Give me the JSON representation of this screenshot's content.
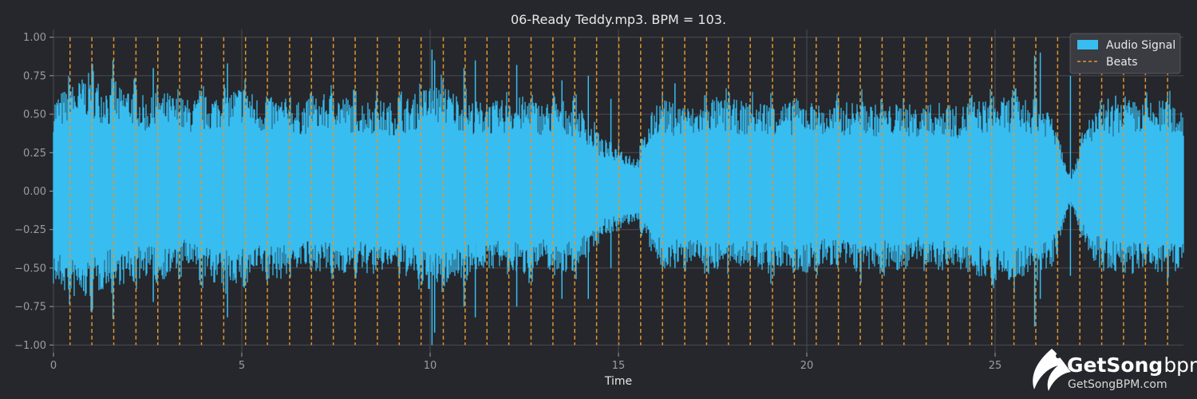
{
  "chart_data": {
    "type": "line",
    "title": "06-Ready Teddy.mp3. BPM = 103.",
    "xlabel": "Time",
    "ylabel": "",
    "xlim": [
      0,
      30
    ],
    "ylim": [
      -1.05,
      1.05
    ],
    "x_ticks": [
      0,
      5,
      10,
      15,
      20,
      25
    ],
    "x_tick_labels": [
      "0",
      "5",
      "10",
      "15",
      "20",
      "25"
    ],
    "y_ticks": [
      1.0,
      0.75,
      0.5,
      0.25,
      0.0,
      -0.25,
      -0.5,
      -0.75,
      -1.0
    ],
    "y_tick_labels": [
      "1.00",
      "0.75",
      "0.50",
      "0.25",
      "0.00",
      "−0.25",
      "−0.50",
      "−0.75",
      "−1.00"
    ],
    "grid": true,
    "legend": {
      "placement": "top-right",
      "entries": [
        "Audio Signal",
        "Beats"
      ]
    },
    "series": [
      {
        "name": "Audio Signal",
        "color": "#38bdf0",
        "duration": 30.0,
        "envelope_x": [
          0,
          0.5,
          1,
          1.5,
          2,
          2.5,
          3,
          3.5,
          4,
          4.5,
          5,
          5.5,
          6,
          6.5,
          7,
          7.5,
          8,
          8.5,
          9,
          9.5,
          10,
          10.5,
          11,
          11.5,
          12,
          12.5,
          13,
          13.5,
          14,
          14.5,
          15,
          15.5,
          16,
          16.5,
          17,
          17.5,
          18,
          18.5,
          19,
          19.5,
          20,
          20.5,
          21,
          21.5,
          22,
          22.5,
          23,
          23.5,
          24,
          24.5,
          25,
          25.5,
          26,
          26.5,
          27,
          27.5,
          28,
          28.5,
          29,
          29.5,
          30
        ],
        "envelope_peak": [
          0.62,
          0.7,
          0.78,
          0.65,
          0.7,
          0.6,
          0.65,
          0.6,
          0.62,
          0.65,
          0.7,
          0.6,
          0.62,
          0.58,
          0.62,
          0.65,
          0.6,
          0.6,
          0.58,
          0.62,
          0.7,
          0.68,
          0.6,
          0.58,
          0.6,
          0.62,
          0.58,
          0.6,
          0.55,
          0.35,
          0.3,
          0.22,
          0.6,
          0.58,
          0.55,
          0.62,
          0.6,
          0.58,
          0.6,
          0.58,
          0.6,
          0.55,
          0.58,
          0.6,
          0.55,
          0.58,
          0.55,
          0.58,
          0.55,
          0.6,
          0.6,
          0.62,
          0.6,
          0.55,
          0.1,
          0.5,
          0.55,
          0.6,
          0.58,
          0.6,
          0.55
        ],
        "envelope_trough": [
          -0.62,
          -0.7,
          -0.72,
          -0.6,
          -0.62,
          -0.55,
          -0.58,
          -0.5,
          -0.58,
          -0.62,
          -0.6,
          -0.55,
          -0.58,
          -0.5,
          -0.52,
          -0.55,
          -0.52,
          -0.55,
          -0.5,
          -0.58,
          -0.65,
          -0.6,
          -0.55,
          -0.5,
          -0.52,
          -0.55,
          -0.5,
          -0.55,
          -0.5,
          -0.3,
          -0.25,
          -0.2,
          -0.48,
          -0.5,
          -0.45,
          -0.52,
          -0.5,
          -0.48,
          -0.55,
          -0.5,
          -0.55,
          -0.48,
          -0.5,
          -0.55,
          -0.5,
          -0.52,
          -0.48,
          -0.52,
          -0.5,
          -0.55,
          -0.58,
          -0.6,
          -0.55,
          -0.5,
          -0.08,
          -0.45,
          -0.5,
          -0.55,
          -0.52,
          -0.55,
          -0.5
        ],
        "spikes": [
          [
            0.8,
            0.7,
            -0.65
          ],
          [
            1.4,
            0.62,
            -0.6
          ],
          [
            1.58,
            0.85,
            -0.83
          ],
          [
            2.65,
            0.8,
            -0.72
          ],
          [
            4.5,
            0.6,
            -0.5
          ],
          [
            4.62,
            0.83,
            -0.82
          ],
          [
            10.05,
            0.92,
            -1.0
          ],
          [
            10.12,
            0.85,
            -0.92
          ],
          [
            10.9,
            0.8,
            -0.75
          ],
          [
            11.2,
            0.85,
            -0.82
          ],
          [
            12.3,
            0.82,
            -0.75
          ],
          [
            13.5,
            0.72,
            -0.7
          ],
          [
            14.2,
            0.75,
            -0.7
          ],
          [
            14.8,
            0.6,
            -0.5
          ],
          [
            16.5,
            0.7,
            -0.5
          ],
          [
            26.05,
            0.88,
            -0.88
          ],
          [
            26.2,
            0.9,
            -0.7
          ],
          [
            27.0,
            0.75,
            -0.55
          ],
          [
            28.0,
            0.6,
            -0.5
          ],
          [
            28.2,
            0.62,
            -0.52
          ]
        ],
        "mid_point": 0.0
      },
      {
        "name": "Beats",
        "color": "#e6952b",
        "x": [
          0.44,
          1.02,
          1.6,
          2.19,
          2.77,
          3.35,
          3.93,
          4.52,
          5.1,
          5.68,
          6.27,
          6.85,
          7.43,
          8.01,
          8.6,
          9.18,
          9.76,
          10.35,
          10.93,
          11.51,
          12.09,
          12.68,
          13.26,
          13.84,
          14.42,
          15.01,
          15.59,
          16.17,
          16.76,
          17.34,
          17.92,
          18.5,
          19.09,
          19.67,
          20.25,
          20.84,
          21.42,
          22.0,
          22.58,
          23.17,
          23.75,
          24.33,
          24.91,
          25.5,
          26.08,
          26.66,
          27.25,
          27.83,
          28.41,
          28.99,
          29.58
        ]
      }
    ]
  },
  "watermark": {
    "brand_main": "GetSong",
    "brand_bpm": "bpm",
    "brand_url": "GetSongBPM.com"
  }
}
